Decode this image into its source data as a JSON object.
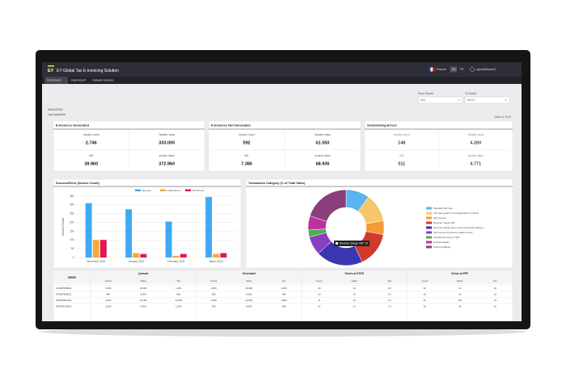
{
  "header": {
    "brand": "EY",
    "title": "EY Global Tax E-invoicing Solution",
    "country": "France",
    "languages": [
      "EN",
      "FR"
    ],
    "user": "opportalsuser2"
  },
  "tabs": [
    "Dashboard",
    "Data import",
    "Outward invoices"
  ],
  "last_updated": {
    "date": "04/01/2022",
    "label": "Last updated"
  },
  "filters": [
    {
      "label": "From Month",
      "value": "May"
    },
    {
      "label": "To Month",
      "value": "March"
    }
  ],
  "currency_note": "Values in EUR",
  "cards": [
    {
      "title": "E-Invoices Generated",
      "metrics": [
        {
          "label": "Invoice Count",
          "value": "2.746"
        },
        {
          "label": "Taxable Value",
          "value": "333.000"
        },
        {
          "label": "VAT",
          "value": "39.960"
        },
        {
          "label": "Invoice Value",
          "value": "372.960"
        }
      ]
    },
    {
      "title": "E-Invoices Not Generated",
      "metrics": [
        {
          "label": "Invoice Count",
          "value": "592"
        },
        {
          "label": "Taxable Value",
          "value": "61.550"
        },
        {
          "label": "VAT",
          "value": "7.386"
        },
        {
          "label": "Invoice Value",
          "value": "68.936"
        }
      ]
    },
    {
      "title": "Outstanding Errors",
      "metrics": [
        {
          "label": "Invoice Count",
          "value": "148"
        },
        {
          "label": "Taxable Value",
          "value": "4.260"
        },
        {
          "label": "VAT",
          "value": "511"
        },
        {
          "label": "Invoice Value",
          "value": "4.771"
        }
      ]
    }
  ],
  "chart_data": [
    {
      "type": "bar",
      "title": "Success/Error (Invoice Count)",
      "y_label": "Invoice Count",
      "categories": [
        "December 2022",
        "January 2023",
        "February 2023",
        "March 2023"
      ],
      "series": [
        {
          "name": "Success",
          "color": "#3fa9f5",
          "values": [
            310,
            275,
            205,
            345
          ]
        },
        {
          "name": "GTES Errors",
          "color": "#f7a934",
          "values": [
            100,
            25,
            10,
            20
          ]
        },
        {
          "name": "PPF Errors",
          "color": "#e0184d",
          "values": [
            100,
            20,
            20,
            25
          ]
        }
      ],
      "ylim": [
        0,
        350
      ],
      "yticks": [
        0,
        50,
        100,
        150,
        200,
        250,
        300,
        350
      ],
      "grid": true
    },
    {
      "type": "pie",
      "donut": true,
      "title": "Transaction Category (% of Total Sales)",
      "categories": [
        "Standard VAT rate",
        "VAT rate equal to 0 not applicable in France",
        "VAT exempt",
        "Reverse charge VAT",
        "Reverse charge due to intra-Community delivery",
        "VAT exempt for Export outside the EU",
        "Outside the scope of VAT",
        "Corsica islands",
        "Cost and Margin"
      ],
      "values": [
        10,
        12,
        6,
        15,
        20,
        8,
        3,
        6,
        20
      ],
      "colors": [
        "#5ab4f0",
        "#f8c66a",
        "#f29a3a",
        "#d03a2b",
        "#3a35b0",
        "#8a3fc0",
        "#4caf50",
        "#c02fa0",
        "#8a3f7a"
      ],
      "tooltip": "Reverse charge VAT: 15"
    }
  ],
  "table": {
    "group_headers": [
      "SIREN",
      "Queued",
      "Generated",
      "Errors at GTES",
      "Errors at PPF"
    ],
    "sub_headers": [
      "Count",
      "Value",
      "Tax"
    ],
    "rows": [
      [
        "123456789001",
        "1,000",
        "10,000",
        "1,200",
        "1,000",
        "20,000",
        "2,000",
        "10",
        "22",
        "5.2",
        "30",
        "12",
        "10"
      ],
      [
        "234567890012",
        "500",
        "5,000",
        "600",
        "500",
        "2,500",
        "300",
        "10",
        "22",
        "5.2",
        "30",
        "22",
        "10"
      ],
      [
        "345678901023",
        "1,000",
        "12,000",
        "12,000",
        "2,000",
        "22,000",
        "2,800",
        "11",
        "22",
        "5.2",
        "32",
        "700",
        "10"
      ],
      [
        "456789012034",
        "1,000",
        "4,000",
        "1,200",
        "300",
        "4,500",
        "400",
        "13",
        "21",
        "7.2",
        "30",
        "30",
        "10"
      ]
    ]
  }
}
